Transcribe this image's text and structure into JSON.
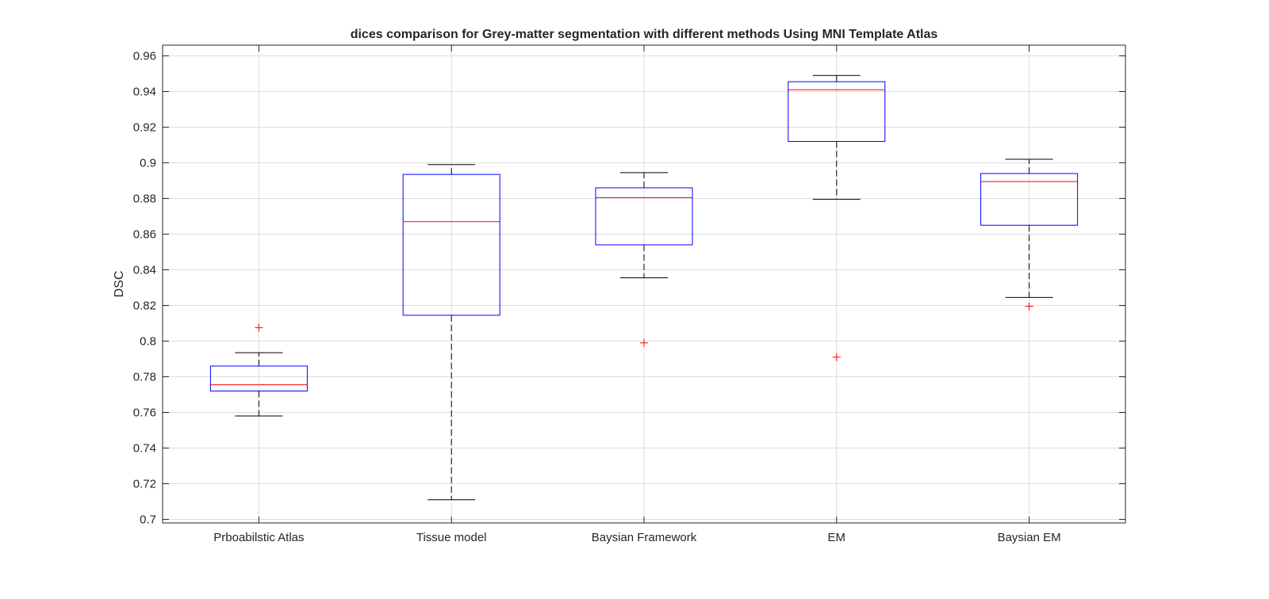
{
  "chart_data": {
    "type": "box",
    "title": "dices comparison for Grey-matter segmentation with different methods Using MNI Template Atlas",
    "xlabel": "",
    "ylabel": "DSC",
    "ylim": [
      0.698,
      0.966
    ],
    "yticks": [
      0.7,
      0.72,
      0.74,
      0.76,
      0.78,
      0.8,
      0.82,
      0.84,
      0.86,
      0.88,
      0.9,
      0.92,
      0.94,
      0.96
    ],
    "ytick_labels": [
      "0.7",
      "0.72",
      "0.74",
      "0.76",
      "0.78",
      "0.8",
      "0.82",
      "0.84",
      "0.86",
      "0.88",
      "0.9",
      "0.92",
      "0.94",
      "0.96"
    ],
    "grid": true,
    "categories": [
      "Prboabilstic Atlas",
      "Tissue model",
      "Baysian Framework",
      "EM",
      "Baysian EM"
    ],
    "boxes": [
      {
        "whisker_low": 0.758,
        "q1": 0.772,
        "median": 0.7755,
        "q3": 0.786,
        "whisker_high": 0.7935,
        "outliers": [
          0.8075
        ]
      },
      {
        "whisker_low": 0.711,
        "q1": 0.8145,
        "median": 0.867,
        "q3": 0.8935,
        "whisker_high": 0.899,
        "outliers": []
      },
      {
        "whisker_low": 0.8355,
        "q1": 0.854,
        "median": 0.8805,
        "q3": 0.886,
        "whisker_high": 0.8945,
        "outliers": [
          0.799
        ]
      },
      {
        "whisker_low": 0.8795,
        "q1": 0.912,
        "median": 0.941,
        "q3": 0.9455,
        "whisker_high": 0.949,
        "outliers": [
          0.791
        ]
      },
      {
        "whisker_low": 0.8245,
        "q1": 0.865,
        "median": 0.8895,
        "q3": 0.894,
        "whisker_high": 0.902,
        "outliers": [
          0.8195
        ]
      }
    ],
    "colors": {
      "box": "#0000ff",
      "median": "#ff0000",
      "whisker": "#000000",
      "outlier": "#ff0000",
      "grid": "#dcdcdc",
      "axis": "#262626"
    }
  }
}
